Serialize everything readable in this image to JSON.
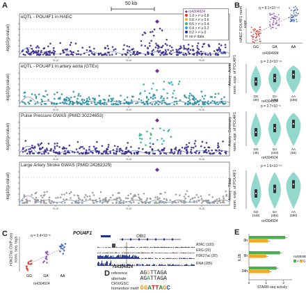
{
  "panels": {
    "A": "A",
    "B": "B",
    "C": "C",
    "D": "D",
    "E": "E"
  },
  "panel_a": {
    "scale_bar": "50 kb",
    "ylabel": "-log10(p-value)",
    "xticks": [
      "76.10",
      "76.20",
      "76.30"
    ],
    "tracks": [
      {
        "title": "eQTL - POU4F1 in HAEC",
        "color": "#3b2a8c"
      },
      {
        "title": "eQTL - POU4F1 in artery aorta (GTEx)",
        "color": "#2a8fa0"
      },
      {
        "title": "Pulse Pressure GWAS (PMID:30224653)",
        "color": "#3b2a8c"
      },
      {
        "title": "Large Artery Stroke GWAS (PMID:24262325)",
        "color": "#999999"
      }
    ],
    "legend": {
      "title": "rs4304924",
      "items": [
        {
          "label": "1.0 > r² ≥ 0.8",
          "color": "#e8382f"
        },
        {
          "label": "0.8 > r² ≥ 0.6",
          "color": "#f5a623"
        },
        {
          "label": "0.6 > r² ≥ 0.4",
          "color": "#2bb673"
        },
        {
          "label": "0.4 > r² ≥ 0.2",
          "color": "#29a3d8"
        },
        {
          "label": "0.2 > r² ≥ 0",
          "color": "#2e2d8f"
        },
        {
          "label": "no r² data",
          "color": "#aaaaaa"
        }
      ]
    }
  },
  "panel_b": {
    "haec": {
      "ylabel": "HAEC POU4F1 norm. expr.",
      "stat": "q = 8.1×10⁻¹³",
      "groups": [
        "GG",
        "GA",
        "AA"
      ],
      "xlabel": "rs4304924",
      "colors": [
        "#e8382f",
        "#9b4fc2",
        "#3a62c9"
      ]
    },
    "violins": [
      {
        "title": "Artery - Aorta",
        "stat": "p = 2.0×10⁻¹⁵",
        "groups": [
          "GG",
          "GA",
          "AA"
        ],
        "counts": [
          "(90)",
          "(188)",
          "(109)"
        ]
      },
      {
        "title": "Artery - Coronary",
        "stat": "p = 2.7×10⁻⁶",
        "groups": [
          "GG",
          "GA",
          "AA"
        ],
        "counts": [
          "(46)",
          "(103)",
          "(64)"
        ]
      },
      {
        "title": "Artery - Tibial",
        "stat": "p = 1.6×10⁻²⁷",
        "groups": [
          "GG",
          "GA",
          "AA"
        ],
        "counts": [
          "(143)",
          "(261)",
          "(180)"
        ]
      }
    ],
    "ylabel_violin": "norm. expr. of POU4F1",
    "xlabel": "rs4304924",
    "violin_color": "#7fd1c3"
  },
  "panel_c": {
    "ylabel": "H3K27ac ChIP-seq norm. seq. tags",
    "stat": "q = 3.4×10⁻⁸",
    "groups": [
      "GG",
      "GA",
      "AA"
    ],
    "xlabel": "rs4304924"
  },
  "genome_browser": {
    "genes": [
      "POU4F1",
      "OBI1"
    ],
    "tracks": [
      {
        "label": "ATAC (100)",
        "color": "#4a4a4a"
      },
      {
        "label": "ERG (20)",
        "color": "#c0392b"
      },
      {
        "label": "H3K27ac (20)",
        "color": "#2c3e9c"
      },
      {
        "label": "RNA (285)",
        "color": "#2c3e9c"
      }
    ],
    "snp": "rs4304924"
  },
  "panel_d": {
    "rows": [
      {
        "label": "reference",
        "seq_pre": "AG",
        "snp": "G",
        "seq_post": "TTAGA"
      },
      {
        "label": "alternate",
        "seq_pre": "AG",
        "snp": "A",
        "seq_post": "TTAGA"
      },
      {
        "label": "CRX/GSC homeobox motif",
        "motif": "GGATTAGC"
      }
    ]
  },
  "panel_e": {
    "ylabel": "IL1B",
    "xlabel": "STARR-seq activity",
    "categories": [
      "0h",
      "6h",
      "24h"
    ],
    "legend_title": "rs4304924",
    "legend": [
      {
        "label": "A",
        "color": "#4caf50"
      },
      {
        "label": "G",
        "color": "#f5a623"
      }
    ],
    "xticks": [
      "0",
      "1",
      "2"
    ]
  },
  "chart_data": [
    {
      "type": "bar",
      "title": "",
      "xlabel": "STARR-seq activity",
      "ylabel": "IL1B",
      "categories": [
        "0h",
        "6h",
        "24h"
      ],
      "series": [
        {
          "name": "A",
          "values": [
            2.1,
            1.8,
            1.6
          ]
        },
        {
          "name": "G",
          "values": [
            1.1,
            1.0,
            1.2
          ]
        }
      ],
      "xlim": [
        0,
        2.5
      ]
    }
  ]
}
